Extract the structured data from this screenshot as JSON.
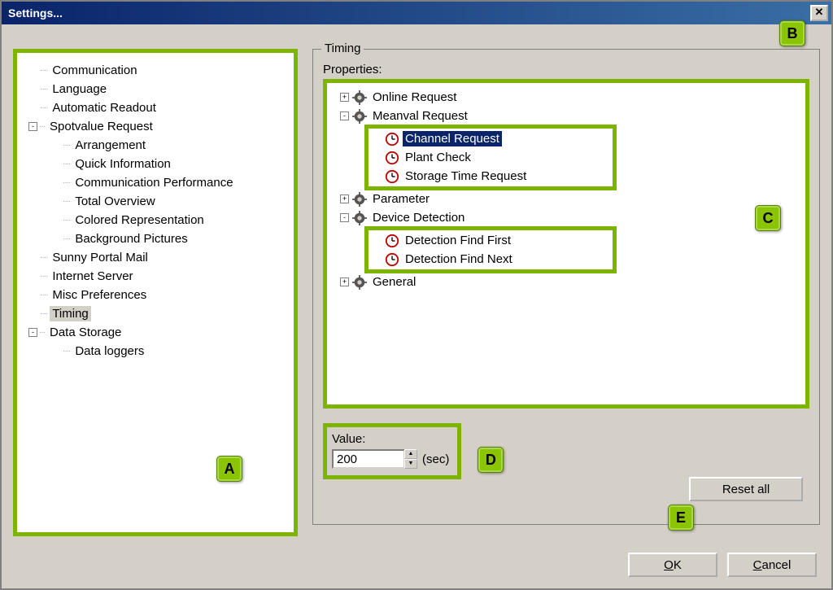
{
  "window": {
    "title": "Settings...",
    "close_glyph": "✕"
  },
  "left_tree": {
    "items": [
      {
        "label": "Communication",
        "indent": 1,
        "box": null
      },
      {
        "label": "Language",
        "indent": 1,
        "box": null
      },
      {
        "label": "Automatic Readout",
        "indent": 1,
        "box": null
      },
      {
        "label": "Spotvalue Request",
        "indent": 0,
        "box": "-"
      },
      {
        "label": "Arrangement",
        "indent": 2,
        "box": null
      },
      {
        "label": "Quick Information",
        "indent": 2,
        "box": null
      },
      {
        "label": "Communication Performance",
        "indent": 2,
        "box": null
      },
      {
        "label": "Total Overview",
        "indent": 2,
        "box": null
      },
      {
        "label": "Colored Representation",
        "indent": 2,
        "box": null
      },
      {
        "label": "Background Pictures",
        "indent": 2,
        "box": null
      },
      {
        "label": "Sunny Portal Mail",
        "indent": 1,
        "box": null
      },
      {
        "label": "Internet Server",
        "indent": 1,
        "box": null
      },
      {
        "label": "Misc Preferences",
        "indent": 1,
        "box": null
      },
      {
        "label": "Timing",
        "indent": 1,
        "box": null,
        "selected": true
      },
      {
        "label": "Data Storage",
        "indent": 0,
        "box": "-"
      },
      {
        "label": "Data loggers",
        "indent": 2,
        "box": null
      }
    ]
  },
  "right": {
    "group_title": "Timing",
    "properties_label": "Properties:",
    "rows": [
      {
        "label": "Online Request",
        "icon": "gear",
        "box": "+",
        "indent": 0
      },
      {
        "label": "Meanval Request",
        "icon": "gear",
        "box": "-",
        "indent": 0
      },
      {
        "label": "Channel Request",
        "icon": "clock",
        "box": null,
        "indent": 1,
        "selected": true,
        "hl": true
      },
      {
        "label": "Plant Check",
        "icon": "clock",
        "box": null,
        "indent": 1
      },
      {
        "label": "Storage Time Request",
        "icon": "clock",
        "box": null,
        "indent": 1,
        "hl_end": true
      },
      {
        "label": "Parameter",
        "icon": "gear",
        "box": "+",
        "indent": 0
      },
      {
        "label": "Device Detection",
        "icon": "gear",
        "box": "-",
        "indent": 0
      },
      {
        "label": "Detection Find First",
        "icon": "clock",
        "box": null,
        "indent": 1,
        "hl2": true
      },
      {
        "label": "Detection Find Next",
        "icon": "clock",
        "box": null,
        "indent": 1,
        "hl2_end": true
      },
      {
        "label": "General",
        "icon": "gear",
        "box": "+",
        "indent": 0
      }
    ],
    "value_label": "Value:",
    "value": "200",
    "unit": "(sec)",
    "reset_label": "Reset all"
  },
  "callouts": {
    "A": "A",
    "B": "B",
    "C": "C",
    "D": "D",
    "E": "E"
  },
  "buttons": {
    "ok": "OK",
    "ok_mn": "O",
    "cancel": "Cancel",
    "cancel_mn": "C"
  },
  "colors": {
    "accent": "#7cb400",
    "titlebar_from": "#0a246a",
    "titlebar_to": "#3a6ea5",
    "bg": "#d4d0c8"
  }
}
